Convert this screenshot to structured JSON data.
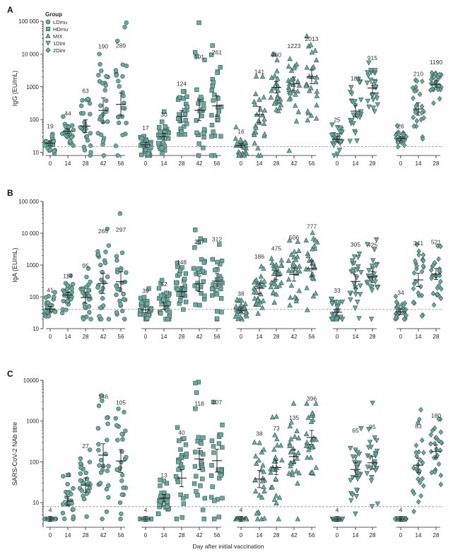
{
  "chart_data": {
    "type": "scatter",
    "xlabel": "Day after initial vaccination",
    "legend": {
      "title": "Group",
      "placement": "top-left",
      "entries": [
        {
          "name": "LDmu",
          "marker": "circle"
        },
        {
          "name": "HDmu",
          "marker": "square"
        },
        {
          "name": "MIX",
          "marker": "triangle-up"
        },
        {
          "name": "1Dim",
          "marker": "triangle-down"
        },
        {
          "name": "2Dim",
          "marker": "diamond"
        }
      ]
    },
    "colors": {
      "marker_fill": "#6fa89e",
      "marker_stroke": "#2f4f4a",
      "bars": "#222222",
      "dashed_line": "#8a8a8a"
    },
    "groups": [
      {
        "name": "LDmu",
        "marker": "circle",
        "days": [
          "0",
          "14",
          "28",
          "42",
          "56"
        ]
      },
      {
        "name": "HDmu",
        "marker": "square",
        "days": [
          "0",
          "14",
          "28",
          "42",
          "56"
        ]
      },
      {
        "name": "MIX",
        "marker": "triangle-up",
        "days": [
          "0",
          "14",
          "28",
          "42",
          "56"
        ]
      },
      {
        "name": "1Dim",
        "marker": "triangle-down",
        "days": [
          "0",
          "14",
          "28"
        ]
      },
      {
        "name": "2Dim",
        "marker": "diamond",
        "days": [
          "0",
          "14",
          "28"
        ]
      }
    ],
    "panels": [
      {
        "letter": "A",
        "ylabel": "IgG (EU/mL)",
        "scale": "log",
        "ylim": [
          8,
          100000
        ],
        "yticks": [
          {
            "value": 10,
            "label": "10"
          },
          {
            "value": 100,
            "label": "100"
          },
          {
            "value": 1000,
            "label": "1000"
          },
          {
            "value": 10000,
            "label": "10 000"
          },
          {
            "value": 100000,
            "label": "100 000"
          }
        ],
        "threshold": 15,
        "lod": 8,
        "gmt": [
          [
            "19",
            "44",
            "63",
            "190",
            "289"
          ],
          [
            "17",
            "30",
            "124",
            "191",
            "261"
          ],
          [
            "16",
            "141",
            "960",
            "1223",
            "2013"
          ],
          [
            "25",
            "181",
            "915"
          ],
          [
            "26",
            "210",
            "1190"
          ]
        ],
        "gmt_values": [
          [
            19,
            44,
            63,
            190,
            289
          ],
          [
            17,
            30,
            124,
            191,
            261
          ],
          [
            16,
            141,
            960,
            1223,
            2013
          ],
          [
            25,
            181,
            915
          ],
          [
            26,
            210,
            1190
          ]
        ],
        "spread": [
          [
            0.2,
            0.22,
            0.55,
            1.1,
            1.0
          ],
          [
            0.2,
            0.3,
            0.5,
            0.9,
            0.9
          ],
          [
            0.15,
            0.7,
            0.5,
            0.6,
            0.6
          ],
          [
            0.25,
            0.5,
            0.45
          ],
          [
            0.12,
            0.55,
            0.3
          ]
        ]
      },
      {
        "letter": "B",
        "ylabel": "IgA (EU/mL)",
        "scale": "log",
        "ylim": [
          10,
          100000
        ],
        "yticks": [
          {
            "value": 10,
            "label": "10"
          },
          {
            "value": 100,
            "label": "100"
          },
          {
            "value": 1000,
            "label": "1000"
          },
          {
            "value": 10000,
            "label": "10 000"
          },
          {
            "value": 100000,
            "label": "100 000"
          }
        ],
        "threshold": 40,
        "lod": 20,
        "gmt": [
          [
            "41",
            "114",
            "95",
            "265",
            "297"
          ],
          [
            "39",
            "52",
            "148",
            "257",
            "312"
          ],
          [
            "38",
            "186",
            "475",
            "506",
            "777"
          ],
          [
            "33",
            "305",
            "425"
          ],
          [
            "34",
            "341",
            "521"
          ]
        ],
        "gmt_values": [
          [
            41,
            114,
            95,
            265,
            297
          ],
          [
            39,
            52,
            148,
            257,
            312
          ],
          [
            38,
            186,
            475,
            506,
            777
          ],
          [
            33,
            305,
            425
          ],
          [
            34,
            341,
            521
          ]
        ],
        "spread": [
          [
            0.25,
            0.25,
            0.5,
            0.9,
            0.9
          ],
          [
            0.25,
            0.3,
            0.45,
            0.7,
            0.7
          ],
          [
            0.2,
            0.5,
            0.4,
            0.6,
            0.7
          ],
          [
            0.3,
            0.6,
            0.5
          ],
          [
            0.25,
            0.6,
            0.5
          ]
        ]
      },
      {
        "letter": "C",
        "ylabel": "SARS-CoV-2 NAb titre",
        "scale": "log",
        "ylim": [
          2.5,
          10000
        ],
        "yticks": [
          {
            "value": 10,
            "label": "10"
          },
          {
            "value": 100,
            "label": "100"
          },
          {
            "value": 1000,
            "label": "1000"
          },
          {
            "value": 10000,
            "label": "10000"
          }
        ],
        "threshold": 8,
        "lod": 4,
        "gmt": [
          [
            "4",
            "11",
            "27",
            "146",
            "105"
          ],
          [
            "4",
            "13",
            "40",
            "118",
            "107"
          ],
          [
            "4",
            "38",
            "73",
            "135",
            "396"
          ],
          [
            "4",
            "65",
            "95"
          ],
          [
            "4",
            "83",
            "180"
          ]
        ],
        "gmt_values": [
          [
            4,
            11,
            27,
            146,
            105
          ],
          [
            4,
            13,
            40,
            118,
            107
          ],
          [
            4,
            38,
            73,
            135,
            396
          ],
          [
            4,
            65,
            95
          ],
          [
            4,
            83,
            180
          ]
        ],
        "spread": [
          [
            0.0,
            0.3,
            0.5,
            0.8,
            0.8
          ],
          [
            0.0,
            0.25,
            0.6,
            0.75,
            0.8
          ],
          [
            0.0,
            0.6,
            0.5,
            0.5,
            0.5
          ],
          [
            0.0,
            0.5,
            0.45
          ],
          [
            0.0,
            0.5,
            0.45
          ]
        ]
      }
    ]
  }
}
